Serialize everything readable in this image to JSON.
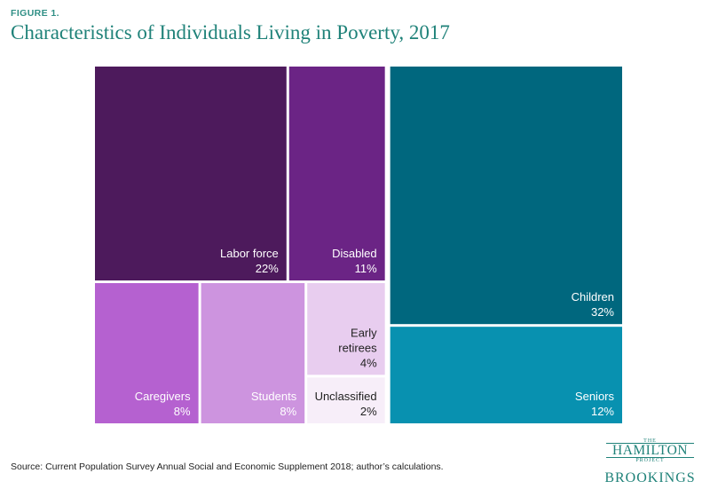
{
  "figure_label": "FIGURE 1.",
  "title": "Characteristics of Individuals Living in Poverty, 2017",
  "source": "Source: Current Population Survey Annual Social and Economic Supplement 2018; author’s calculations.",
  "logo": {
    "the": "THE",
    "hamilton": "HAMILTON",
    "project": "PROJECT",
    "brookings": "BROOKINGS"
  },
  "chart_data": {
    "type": "treemap",
    "unit": "%",
    "groups": [
      {
        "items": [
          {
            "label": [
              "Labor force"
            ],
            "value": 22,
            "value_text": "22%",
            "color": "#4d1a5c",
            "text_color": "#ffffff"
          },
          {
            "label": [
              "Disabled"
            ],
            "value": 11,
            "value_text": "11%",
            "color": "#6b2485",
            "text_color": "#ffffff"
          },
          {
            "label": [
              "Caregivers"
            ],
            "value": 8,
            "value_text": "8%",
            "color": "#b561d0",
            "text_color": "#ffffff"
          },
          {
            "label": [
              "Students"
            ],
            "value": 8,
            "value_text": "8%",
            "color": "#cd94df",
            "text_color": "#ffffff"
          },
          {
            "label": [
              "Early",
              "retirees"
            ],
            "value": 4,
            "value_text": "4%",
            "color": "#e8cdef",
            "text_color": "#222222"
          },
          {
            "label": [
              "Unclassified"
            ],
            "value": 2,
            "value_text": "2%",
            "color": "#f7eef9",
            "text_color": "#222222"
          }
        ]
      },
      {
        "items": [
          {
            "label": [
              "Children"
            ],
            "value": 32,
            "value_text": "32%",
            "color": "#00677e",
            "text_color": "#ffffff"
          },
          {
            "label": [
              "Seniors"
            ],
            "value": 12,
            "value_text": "12%",
            "color": "#0891b0",
            "text_color": "#ffffff"
          }
        ]
      }
    ]
  }
}
